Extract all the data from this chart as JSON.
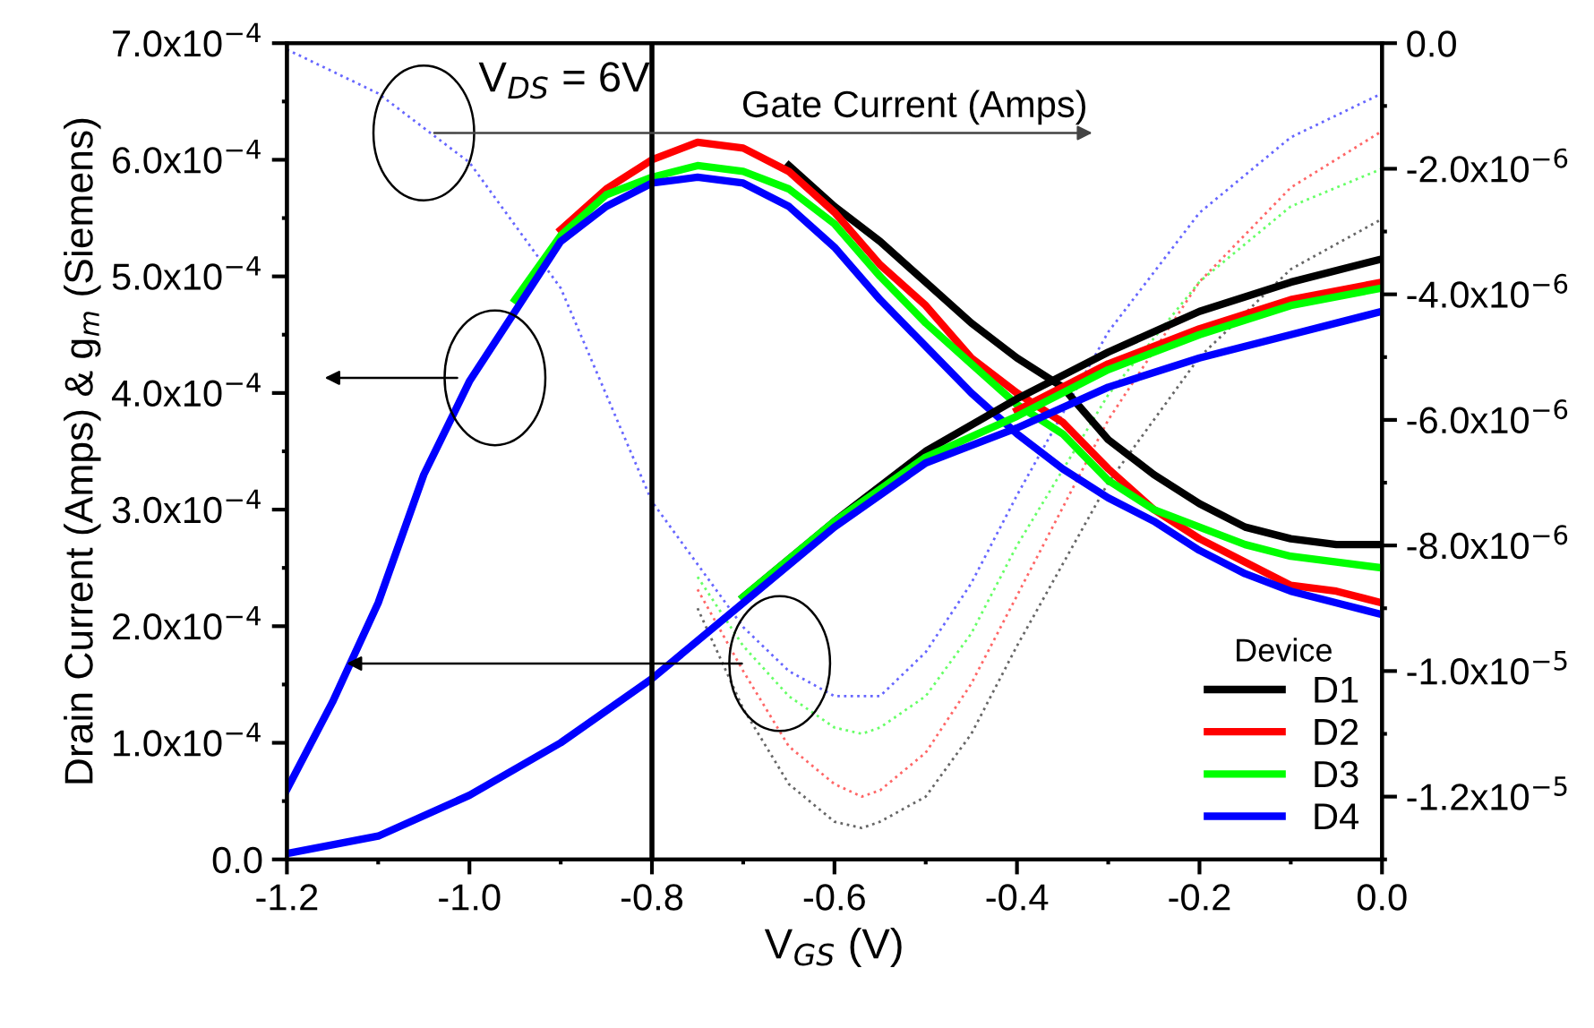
{
  "chart_data": {
    "type": "line",
    "xlabel": "V$_{GS}$ (V)",
    "ylabel": "Drain Current (Amps) & g$_{m}$ (Siemens)",
    "legend_title": "Device",
    "legend": "bottom right",
    "grid": false,
    "xlim": [
      -1.2,
      0.0
    ],
    "xticks": [
      {
        "value": -1.2,
        "label": "-1.2"
      },
      {
        "value": -1.0,
        "label": "-1.0"
      },
      {
        "value": -0.8,
        "label": "-0.8"
      },
      {
        "value": -0.6,
        "label": "-0.6"
      },
      {
        "value": -0.4,
        "label": "-0.4"
      },
      {
        "value": -0.2,
        "label": "-0.2"
      },
      {
        "value": 0.0,
        "label": "0.0"
      }
    ],
    "ylim": [
      0,
      0.0007
    ],
    "yticks": [
      {
        "value": 0,
        "label": "0.0"
      },
      {
        "value": 0.0001,
        "label": "1.0x10$^{−4}$"
      },
      {
        "value": 0.0002,
        "label": "2.0x10$^{−4}$"
      },
      {
        "value": 0.0003,
        "label": "3.0x10$^{−4}$"
      },
      {
        "value": 0.0004,
        "label": "4.0x10$^{−4}$"
      },
      {
        "value": 0.0005,
        "label": "5.0x10$^{−4}$"
      },
      {
        "value": 0.0006,
        "label": "6.0x10$^{−4}$"
      },
      {
        "value": 0.0007,
        "label": "7.0x10$^{−4}$"
      }
    ],
    "y2lim": [
      -1.3e-05,
      0
    ],
    "y2ticks": [
      {
        "value": 0,
        "label": "0.0"
      },
      {
        "value": -2e-06,
        "label": "-2.0x10$^{−6}$"
      },
      {
        "value": -4e-06,
        "label": "-4.0x10$^{−6}$"
      },
      {
        "value": -6e-06,
        "label": "-6.0x10$^{−6}$"
      },
      {
        "value": -8e-06,
        "label": "-8.0x10$^{−6}$"
      },
      {
        "value": -1e-05,
        "label": "-1.0x10$^{−5}$"
      },
      {
        "value": -1.2e-05,
        "label": "-1.2x10$^{−5}$"
      }
    ],
    "ref_lines": [
      {
        "axis": "x",
        "value": -0.8,
        "color": "#000000"
      }
    ],
    "annotations": [
      "V$_{DS}$ = 6V",
      "Gate Current (Amps)"
    ],
    "series": [
      {
        "name": "D1",
        "color": "#000000",
        "line_style": "solid",
        "x": [
          -0.65,
          -0.6,
          -0.55,
          -0.5,
          -0.45,
          -0.4,
          -0.35,
          -0.3,
          -0.25,
          -0.2,
          -0.15,
          -0.1,
          -0.05,
          0.0
        ],
        "values": [
          0.000595,
          0.00056,
          0.00053,
          0.000495,
          0.00046,
          0.00043,
          0.000405,
          0.00036,
          0.00033,
          0.000305,
          0.000285,
          0.000275,
          0.00027,
          0.00027
        ]
      },
      {
        "name": "D2",
        "color": "#ff0000",
        "line_style": "solid",
        "x": [
          -0.9,
          -0.85,
          -0.8,
          -0.75,
          -0.7,
          -0.65,
          -0.6,
          -0.55,
          -0.5,
          -0.45,
          -0.4,
          -0.35,
          -0.3,
          -0.25,
          -0.2,
          -0.15,
          -0.1,
          -0.05,
          0.0
        ],
        "values": [
          0.00054,
          0.000575,
          0.0006,
          0.000615,
          0.00061,
          0.00059,
          0.000555,
          0.00051,
          0.000475,
          0.00043,
          0.0004,
          0.000375,
          0.000335,
          0.0003,
          0.000275,
          0.000255,
          0.000235,
          0.00023,
          0.00022
        ]
      },
      {
        "name": "D3",
        "color": "#00ff00",
        "line_style": "solid",
        "x": [
          -0.95,
          -0.9,
          -0.85,
          -0.8,
          -0.75,
          -0.7,
          -0.65,
          -0.6,
          -0.55,
          -0.5,
          -0.45,
          -0.4,
          -0.35,
          -0.3,
          -0.25,
          -0.2,
          -0.15,
          -0.1,
          -0.05,
          0.0
        ],
        "values": [
          0.00048,
          0.000535,
          0.00057,
          0.000585,
          0.000595,
          0.00059,
          0.000575,
          0.000545,
          0.0005,
          0.00046,
          0.000425,
          0.00039,
          0.000365,
          0.000325,
          0.0003,
          0.000285,
          0.00027,
          0.00026,
          0.000255,
          0.00025
        ]
      },
      {
        "name": "D4",
        "color": "#0000ff",
        "line_style": "solid",
        "x": [
          -1.2,
          -1.15,
          -1.1,
          -1.05,
          -1.0,
          -0.95,
          -0.9,
          -0.85,
          -0.8,
          -0.75,
          -0.7,
          -0.65,
          -0.6,
          -0.55,
          -0.5,
          -0.45,
          -0.4,
          -0.35,
          -0.3,
          -0.25,
          -0.2,
          -0.15,
          -0.1,
          -0.05,
          0.0
        ],
        "values": [
          6e-05,
          0.000135,
          0.00022,
          0.00033,
          0.00041,
          0.00047,
          0.00053,
          0.00056,
          0.00058,
          0.000585,
          0.00058,
          0.00056,
          0.000525,
          0.00048,
          0.00044,
          0.0004,
          0.000365,
          0.000335,
          0.00031,
          0.00029,
          0.000265,
          0.000245,
          0.00023,
          0.00022,
          0.00021
        ]
      },
      {
        "color": "#000000",
        "line_style": "solid",
        "x": [
          -0.7,
          -0.6,
          -0.5,
          -0.4,
          -0.3,
          -0.2,
          -0.1,
          0.0
        ],
        "values": [
          0.000225,
          0.00029,
          0.00035,
          0.000395,
          0.000435,
          0.00047,
          0.000495,
          0.000515
        ]
      },
      {
        "color": "#ff0000",
        "line_style": "solid",
        "x": [
          -0.4,
          -0.3,
          -0.2,
          -0.1,
          0.0
        ],
        "values": [
          0.000385,
          0.000425,
          0.000455,
          0.00048,
          0.000495
        ]
      },
      {
        "color": "#00ff00",
        "line_style": "solid",
        "x": [
          -0.7,
          -0.6,
          -0.5,
          -0.4,
          -0.3,
          -0.2,
          -0.1,
          0.0
        ],
        "values": [
          0.000225,
          0.00029,
          0.000345,
          0.00038,
          0.00042,
          0.00045,
          0.000475,
          0.00049
        ]
      },
      {
        "color": "#0000ff",
        "line_style": "solid",
        "x": [
          -1.2,
          -1.1,
          -1.0,
          -0.9,
          -0.8,
          -0.7,
          -0.6,
          -0.5,
          -0.4,
          -0.3,
          -0.2,
          -0.1,
          0.0
        ],
        "values": [
          5e-06,
          2e-05,
          5.5e-05,
          0.0001,
          0.000155,
          0.00022,
          0.000285,
          0.00034,
          0.00037,
          0.000405,
          0.00043,
          0.00045,
          0.00047
        ]
      },
      {
        "color": "#000000",
        "line_style": "dotted",
        "axis": "y2",
        "x": [
          -0.75,
          -0.7,
          -0.65,
          -0.6,
          -0.57,
          -0.55,
          -0.5,
          -0.45,
          -0.4,
          -0.3,
          -0.2,
          -0.1,
          0.0
        ],
        "values": [
          -9e-06,
          -1.06e-05,
          -1.18e-05,
          -1.24e-05,
          -1.25e-05,
          -1.24e-05,
          -1.2e-05,
          -1.1e-05,
          -9.6e-06,
          -7e-06,
          -5e-06,
          -3.6e-06,
          -2.8e-06
        ]
      },
      {
        "color": "#ff0000",
        "line_style": "dotted",
        "axis": "y2",
        "x": [
          -0.75,
          -0.7,
          -0.65,
          -0.6,
          -0.57,
          -0.55,
          -0.5,
          -0.45,
          -0.4,
          -0.3,
          -0.2,
          -0.1,
          0.0
        ],
        "values": [
          -8.7e-06,
          -1e-05,
          -1.12e-05,
          -1.18e-05,
          -1.2e-05,
          -1.19e-05,
          -1.13e-05,
          -1.02e-05,
          -8.8e-06,
          -6e-06,
          -3.8e-06,
          -2.3e-06,
          -1.4e-06
        ]
      },
      {
        "color": "#00ff00",
        "line_style": "dotted",
        "axis": "y2",
        "x": [
          -0.75,
          -0.7,
          -0.65,
          -0.6,
          -0.57,
          -0.55,
          -0.5,
          -0.45,
          -0.4,
          -0.3,
          -0.2,
          -0.1,
          0.0
        ],
        "values": [
          -8.5e-06,
          -9.6e-06,
          -1.04e-05,
          -1.09e-05,
          -1.1e-05,
          -1.09e-05,
          -1.04e-05,
          -9.4e-06,
          -8e-06,
          -5.6e-06,
          -3.8e-06,
          -2.6e-06,
          -2e-06
        ]
      },
      {
        "color": "#0000ff",
        "line_style": "dotted",
        "axis": "y2",
        "x": [
          -1.2,
          -1.1,
          -1.0,
          -0.9,
          -0.8,
          -0.75,
          -0.7,
          -0.65,
          -0.6,
          -0.57,
          -0.55,
          -0.5,
          -0.45,
          -0.4,
          -0.3,
          -0.2,
          -0.1,
          0.0
        ],
        "values": [
          -1e-07,
          -8e-07,
          -1.9e-06,
          -3.9e-06,
          -7.3e-06,
          -8.3e-06,
          -9.3e-06,
          -1e-05,
          -1.04e-05,
          -1.04e-05,
          -1.04e-05,
          -9.7e-06,
          -8.6e-06,
          -7.2e-06,
          -4.6e-06,
          -2.7e-06,
          -1.5e-06,
          -8e-07
        ]
      }
    ]
  }
}
